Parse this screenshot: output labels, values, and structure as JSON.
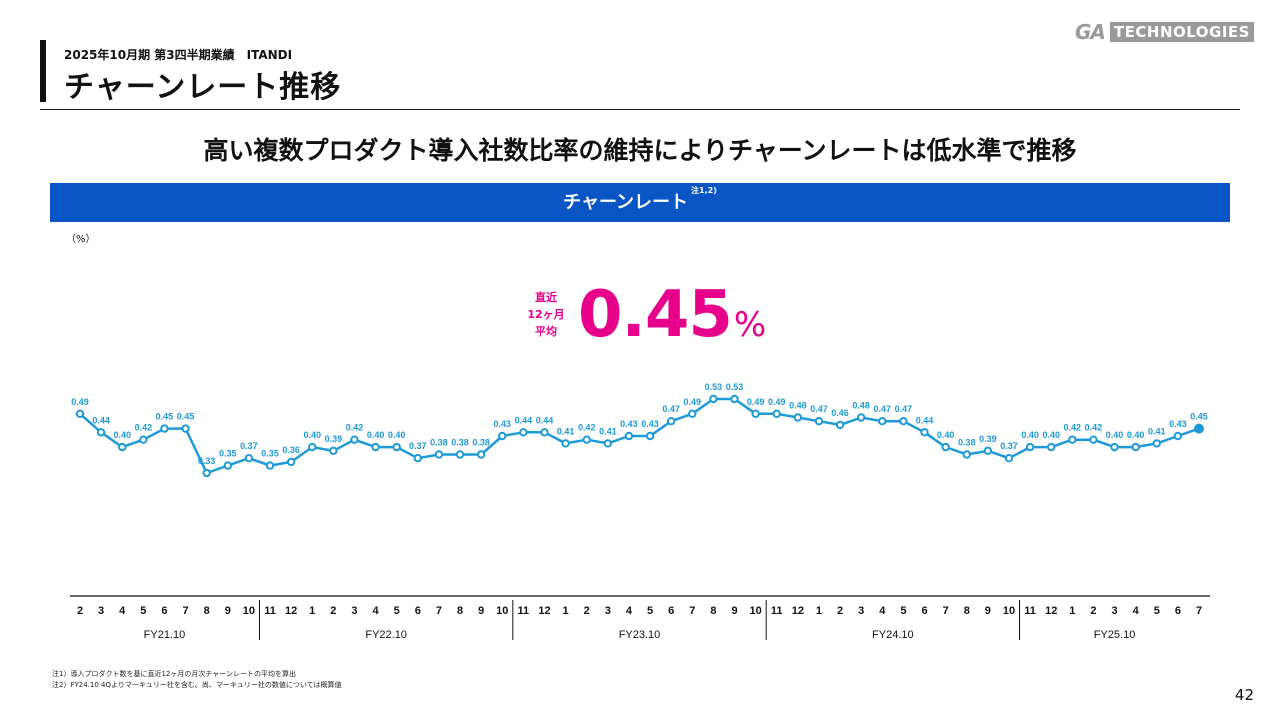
{
  "header": {
    "subtitle": "2025年10月期 第3四半期業績　ITANDI",
    "title": "チャーンレート推移",
    "logo_ga": "GA",
    "logo_tech": "TECHNOLOGIES"
  },
  "headline": "高い複数プロダクト導入社数比率の維持によりチャーンレートは低水準で推移",
  "chart_header": {
    "label": "チャーンレート",
    "note_ref": "注1,2)"
  },
  "unit_label": "（%）",
  "kpi": {
    "label_lines": [
      "直近",
      "12ヶ月",
      "平均"
    ],
    "value": "0.45",
    "unit": "%",
    "color": "#e6008c"
  },
  "chart_data": {
    "type": "line",
    "title": "チャーンレート",
    "ylabel": "（%）",
    "line_color": "#1e9ad6",
    "x_months": [
      "2",
      "3",
      "4",
      "5",
      "6",
      "7",
      "8",
      "9",
      "10",
      "11",
      "12",
      "1",
      "2",
      "3",
      "4",
      "5",
      "6",
      "7",
      "8",
      "9",
      "10",
      "11",
      "12",
      "1",
      "2",
      "3",
      "4",
      "5",
      "6",
      "7",
      "8",
      "9",
      "10",
      "11",
      "12",
      "1",
      "2",
      "3",
      "4",
      "5",
      "6",
      "7",
      "8",
      "9",
      "10",
      "11",
      "12",
      "1",
      "2",
      "3",
      "4",
      "5",
      "6",
      "7"
    ],
    "values": [
      0.49,
      0.44,
      0.4,
      0.42,
      0.45,
      0.45,
      0.33,
      0.35,
      0.37,
      0.35,
      0.36,
      0.4,
      0.39,
      0.42,
      0.4,
      0.4,
      0.37,
      0.38,
      0.38,
      0.38,
      0.43,
      0.44,
      0.44,
      0.41,
      0.42,
      0.41,
      0.43,
      0.43,
      0.47,
      0.49,
      0.53,
      0.53,
      0.49,
      0.49,
      0.48,
      0.47,
      0.46,
      0.48,
      0.47,
      0.47,
      0.44,
      0.4,
      0.38,
      0.39,
      0.37,
      0.4,
      0.4,
      0.42,
      0.42,
      0.4,
      0.4,
      0.41,
      0.43,
      0.45
    ],
    "labels": [
      "0.49",
      "0.44",
      "0.40",
      "0.42",
      "0.45",
      "0.45",
      "0.33",
      "0.35",
      "0.37",
      "0.35",
      "0.36",
      "0.40",
      "0.39",
      "0.42",
      "0.40",
      "0.40",
      "0.37",
      "0.38",
      "0.38",
      "0.38",
      "0.43",
      "0.44",
      "0.44",
      "0.41",
      "0.42",
      "0.41",
      "0.43",
      "0.43",
      "0.47",
      "0.49",
      "0.53",
      "0.53",
      "0.49",
      "0.49",
      "0.48",
      "0.47",
      "0.46",
      "0.48",
      "0.47",
      "0.47",
      "0.44",
      "0.40",
      "0.38",
      "0.39",
      "0.37",
      "0.40",
      "0.40",
      "0.42",
      "0.42",
      "0.40",
      "0.40",
      "0.41",
      "0.43",
      "0.45"
    ],
    "fiscal_years": [
      {
        "label": "FY21.10",
        "start": 0,
        "end": 8
      },
      {
        "label": "FY22.10",
        "start": 9,
        "end": 20
      },
      {
        "label": "FY23.10",
        "start": 21,
        "end": 32
      },
      {
        "label": "FY24.10",
        "start": 33,
        "end": 44
      },
      {
        "label": "FY25.10",
        "start": 45,
        "end": 53
      }
    ]
  },
  "footnotes": [
    "注1）導入プロダクト数を基に直近12ヶ月の月次チャーンレートの平均を算出",
    "注2）FY24.10 4Qよりマーキュリー社を含む。尚、マーキュリー社の数値については概算値"
  ],
  "page_number": "42"
}
